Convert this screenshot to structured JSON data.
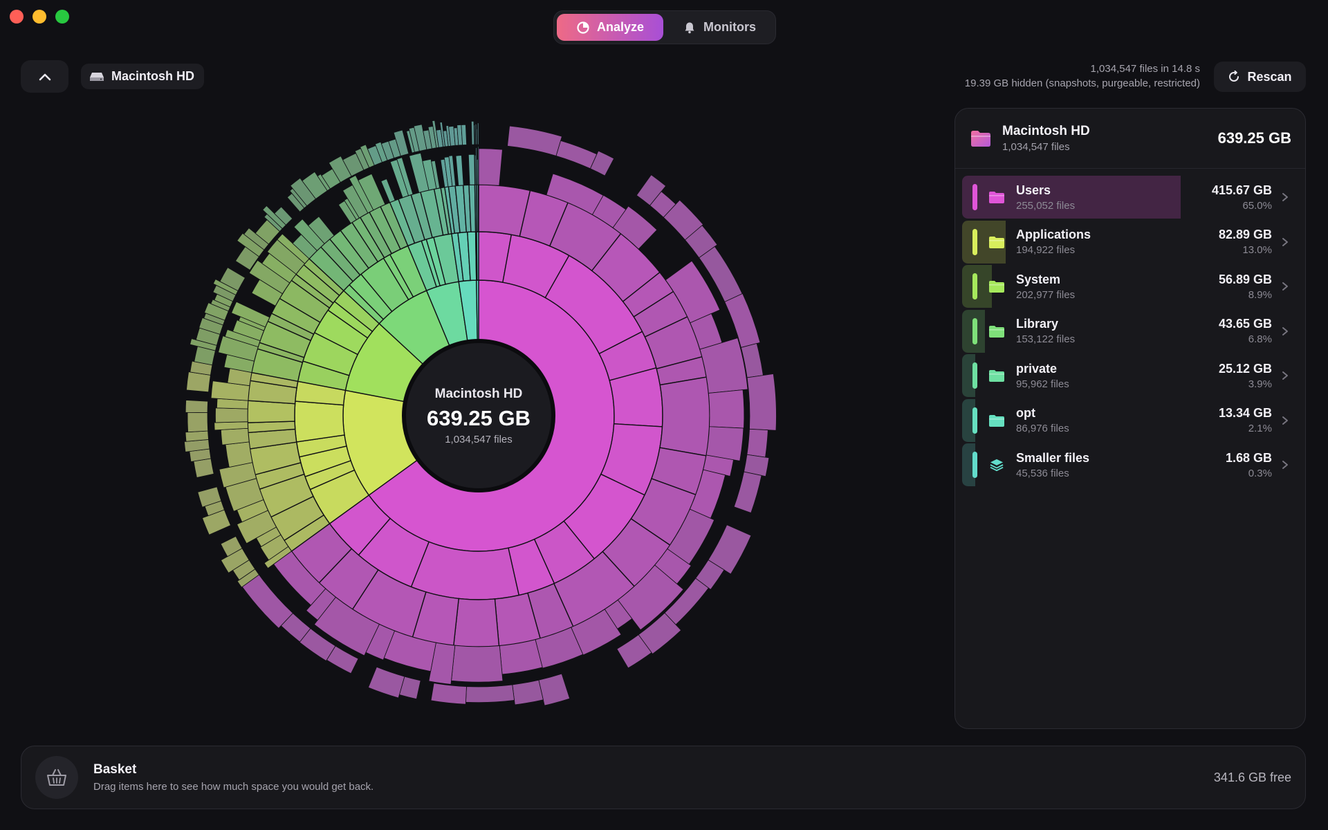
{
  "window": {
    "controls": [
      "close",
      "minimize",
      "zoom"
    ]
  },
  "toolbar": {
    "tabs": [
      {
        "label": "Analyze",
        "icon": "pie-chart-icon",
        "active": true
      },
      {
        "label": "Monitors",
        "icon": "bell-icon",
        "active": false
      }
    ]
  },
  "nav": {
    "up_icon": "chevron-up-icon",
    "breadcrumb": {
      "icon": "disk-icon",
      "label": "Macintosh HD"
    }
  },
  "scan": {
    "summary": "1,034,547 files in 14.8 s",
    "hidden": "19.39 GB hidden (snapshots, purgeable, restricted)",
    "rescan_label": "Rescan",
    "rescan_icon": "refresh-icon"
  },
  "chart_center": {
    "name": "Macintosh HD",
    "size": "639.25 GB",
    "files": "1,034,547 files"
  },
  "chart_data": {
    "type": "sunburst",
    "root": "Macintosh HD",
    "total_gb": 639.25,
    "categories": [
      "Users",
      "Applications",
      "System",
      "Library",
      "private",
      "opt",
      "Smaller files"
    ],
    "values": [
      415.67,
      82.89,
      56.89,
      43.65,
      25.12,
      13.34,
      1.68
    ],
    "colors": [
      "#e055d8",
      "#d9ee5c",
      "#a6e85c",
      "#7fe07a",
      "#6ee0a2",
      "#66e0c0",
      "#62dccb"
    ]
  },
  "panel": {
    "header": {
      "name": "Macintosh HD",
      "files": "1,034,547 files",
      "size": "639.25 GB",
      "icon": "folder-icon"
    },
    "rows": [
      {
        "name": "Users",
        "files": "255,052 files",
        "size": "415.67 GB",
        "percent": "65.0%",
        "share": 0.65,
        "color": "#e055d8",
        "icon": "folder-icon"
      },
      {
        "name": "Applications",
        "files": "194,922 files",
        "size": "82.89 GB",
        "percent": "13.0%",
        "share": 0.13,
        "color": "#d9ee5c",
        "icon": "folder-icon"
      },
      {
        "name": "System",
        "files": "202,977 files",
        "size": "56.89 GB",
        "percent": "8.9%",
        "share": 0.089,
        "color": "#a6e85c",
        "icon": "folder-icon"
      },
      {
        "name": "Library",
        "files": "153,122 files",
        "size": "43.65 GB",
        "percent": "6.8%",
        "share": 0.068,
        "color": "#7fe07a",
        "icon": "folder-icon"
      },
      {
        "name": "private",
        "files": "95,962 files",
        "size": "25.12 GB",
        "percent": "3.9%",
        "share": 0.039,
        "color": "#6ee0a2",
        "icon": "folder-icon"
      },
      {
        "name": "opt",
        "files": "86,976 files",
        "size": "13.34 GB",
        "percent": "2.1%",
        "share": 0.021,
        "color": "#66e0c0",
        "icon": "folder-icon"
      },
      {
        "name": "Smaller files",
        "files": "45,536 files",
        "size": "1.68 GB",
        "percent": "0.3%",
        "share": 0.003,
        "color": "#62dccb",
        "icon": "layers-icon"
      }
    ]
  },
  "basket": {
    "title": "Basket",
    "subtitle": "Drag items here to see how much space you would get back.",
    "free": "341.6 GB free",
    "icon": "basket-icon"
  }
}
